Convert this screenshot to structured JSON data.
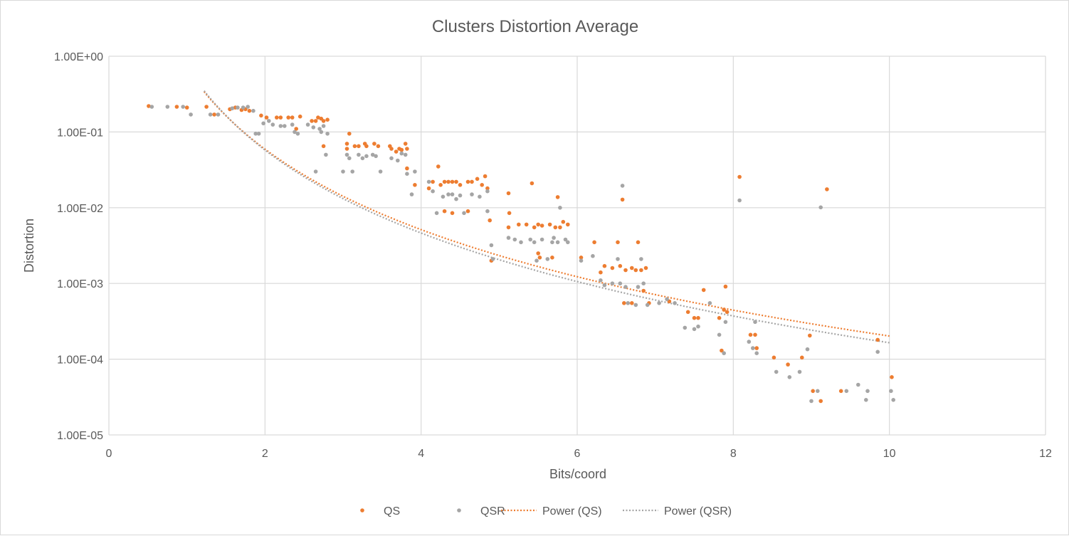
{
  "chart_data": {
    "type": "scatter",
    "title": "Clusters Distortion Average",
    "xlabel": "Bits/coord",
    "ylabel": "Distortion",
    "xlim": [
      0,
      12
    ],
    "ylim": [
      1e-05,
      1
    ],
    "yscale": "log",
    "x_ticks": [
      "0",
      "2",
      "4",
      "6",
      "8",
      "10",
      "12"
    ],
    "x_tick_values": [
      0,
      2,
      4,
      6,
      8,
      10,
      12
    ],
    "y_ticks": [
      "1.00E-05",
      "1.00E-04",
      "1.00E-03",
      "1.00E-02",
      "1.00E-01",
      "1.00E+00"
    ],
    "y_tick_values": [
      1e-05,
      0.0001,
      0.001,
      0.01,
      0.1,
      1
    ],
    "grid": true,
    "legend_position": "bottom",
    "series": [
      {
        "name": "QS",
        "kind": "points",
        "color": "#ed7d31",
        "points": [
          [
            0.51,
            0.22
          ],
          [
            0.87,
            0.215
          ],
          [
            1.0,
            0.21
          ],
          [
            1.25,
            0.215
          ],
          [
            1.35,
            0.17
          ],
          [
            1.55,
            0.2
          ],
          [
            1.62,
            0.21
          ],
          [
            1.7,
            0.195
          ],
          [
            1.75,
            0.2
          ],
          [
            1.8,
            0.19
          ],
          [
            1.95,
            0.165
          ],
          [
            2.02,
            0.155
          ],
          [
            2.15,
            0.155
          ],
          [
            2.2,
            0.155
          ],
          [
            2.3,
            0.155
          ],
          [
            2.35,
            0.155
          ],
          [
            2.4,
            0.11
          ],
          [
            2.45,
            0.16
          ],
          [
            2.6,
            0.14
          ],
          [
            2.65,
            0.14
          ],
          [
            2.68,
            0.155
          ],
          [
            2.72,
            0.15
          ],
          [
            2.75,
            0.14
          ],
          [
            2.8,
            0.145
          ],
          [
            2.75,
            0.065
          ],
          [
            3.05,
            0.07
          ],
          [
            3.08,
            0.095
          ],
          [
            3.05,
            0.06
          ],
          [
            3.15,
            0.065
          ],
          [
            3.2,
            0.065
          ],
          [
            3.28,
            0.07
          ],
          [
            3.3,
            0.065
          ],
          [
            3.4,
            0.07
          ],
          [
            3.45,
            0.065
          ],
          [
            3.6,
            0.065
          ],
          [
            3.62,
            0.06
          ],
          [
            3.68,
            0.055
          ],
          [
            3.72,
            0.06
          ],
          [
            3.75,
            0.058
          ],
          [
            3.8,
            0.07
          ],
          [
            3.82,
            0.06
          ],
          [
            3.82,
            0.033
          ],
          [
            3.92,
            0.02
          ],
          [
            4.1,
            0.018
          ],
          [
            4.15,
            0.022
          ],
          [
            4.22,
            0.035
          ],
          [
            4.25,
            0.02
          ],
          [
            4.3,
            0.022
          ],
          [
            4.35,
            0.022
          ],
          [
            4.4,
            0.022
          ],
          [
            4.45,
            0.022
          ],
          [
            4.5,
            0.02
          ],
          [
            4.6,
            0.022
          ],
          [
            4.65,
            0.022
          ],
          [
            4.72,
            0.024
          ],
          [
            4.78,
            0.02
          ],
          [
            4.82,
            0.026
          ],
          [
            4.85,
            0.018
          ],
          [
            4.4,
            0.0085
          ],
          [
            4.3,
            0.009
          ],
          [
            4.6,
            0.009
          ],
          [
            4.88,
            0.0068
          ],
          [
            4.9,
            0.002
          ],
          [
            5.12,
            0.0155
          ],
          [
            5.13,
            0.0085
          ],
          [
            5.12,
            0.0055
          ],
          [
            5.25,
            0.006
          ],
          [
            5.35,
            0.006
          ],
          [
            5.42,
            0.021
          ],
          [
            5.45,
            0.0055
          ],
          [
            5.5,
            0.006
          ],
          [
            5.55,
            0.0058
          ],
          [
            5.65,
            0.006
          ],
          [
            5.72,
            0.0055
          ],
          [
            5.75,
            0.0138
          ],
          [
            5.78,
            0.0055
          ],
          [
            5.82,
            0.0065
          ],
          [
            5.88,
            0.006
          ],
          [
            5.5,
            0.0025
          ],
          [
            5.52,
            0.0022
          ],
          [
            5.68,
            0.0022
          ],
          [
            6.05,
            0.0022
          ],
          [
            6.22,
            0.0035
          ],
          [
            6.3,
            0.0014
          ],
          [
            6.35,
            0.0017
          ],
          [
            6.45,
            0.0016
          ],
          [
            6.52,
            0.0035
          ],
          [
            6.55,
            0.0017
          ],
          [
            6.58,
            0.0128
          ],
          [
            6.62,
            0.0015
          ],
          [
            6.7,
            0.0016
          ],
          [
            6.75,
            0.0015
          ],
          [
            6.78,
            0.0035
          ],
          [
            6.82,
            0.0015
          ],
          [
            6.85,
            0.0008
          ],
          [
            6.88,
            0.0016
          ],
          [
            6.6,
            0.00055
          ],
          [
            6.7,
            0.00055
          ],
          [
            6.92,
            0.00055
          ],
          [
            7.18,
            0.00058
          ],
          [
            7.42,
            0.00042
          ],
          [
            7.5,
            0.00035
          ],
          [
            7.55,
            0.00035
          ],
          [
            7.62,
            0.00082
          ],
          [
            7.82,
            0.00035
          ],
          [
            7.88,
            0.00045
          ],
          [
            7.9,
            0.00091
          ],
          [
            7.85,
            0.00013
          ],
          [
            7.92,
            0.00042
          ],
          [
            8.08,
            0.0255
          ],
          [
            8.22,
            0.00021
          ],
          [
            8.28,
            0.00021
          ],
          [
            8.3,
            0.00014
          ],
          [
            8.52,
            0.000105
          ],
          [
            8.7,
            8.5e-05
          ],
          [
            8.88,
            0.000105
          ],
          [
            8.98,
            0.000205
          ],
          [
            9.02,
            3.8e-05
          ],
          [
            9.12,
            2.8e-05
          ],
          [
            9.2,
            0.0175
          ],
          [
            9.38,
            3.8e-05
          ],
          [
            9.85,
            0.00018
          ],
          [
            10.03,
            5.8e-05
          ]
        ]
      },
      {
        "name": "QSR",
        "kind": "points",
        "color": "#a5a5a5",
        "points": [
          [
            0.55,
            0.215
          ],
          [
            0.75,
            0.215
          ],
          [
            0.95,
            0.215
          ],
          [
            1.05,
            0.17
          ],
          [
            1.3,
            0.17
          ],
          [
            1.4,
            0.17
          ],
          [
            1.58,
            0.205
          ],
          [
            1.65,
            0.21
          ],
          [
            1.72,
            0.21
          ],
          [
            1.78,
            0.215
          ],
          [
            1.85,
            0.19
          ],
          [
            1.88,
            0.095
          ],
          [
            1.92,
            0.095
          ],
          [
            1.98,
            0.13
          ],
          [
            2.05,
            0.14
          ],
          [
            2.1,
            0.125
          ],
          [
            2.2,
            0.12
          ],
          [
            2.25,
            0.12
          ],
          [
            2.35,
            0.125
          ],
          [
            2.38,
            0.1
          ],
          [
            2.42,
            0.095
          ],
          [
            2.55,
            0.125
          ],
          [
            2.62,
            0.115
          ],
          [
            2.65,
            0.03
          ],
          [
            2.7,
            0.11
          ],
          [
            2.75,
            0.12
          ],
          [
            2.72,
            0.1
          ],
          [
            2.78,
            0.05
          ],
          [
            2.8,
            0.095
          ],
          [
            3.0,
            0.03
          ],
          [
            3.05,
            0.05
          ],
          [
            3.08,
            0.045
          ],
          [
            3.12,
            0.03
          ],
          [
            3.2,
            0.05
          ],
          [
            3.25,
            0.045
          ],
          [
            3.3,
            0.048
          ],
          [
            3.38,
            0.05
          ],
          [
            3.42,
            0.048
          ],
          [
            3.48,
            0.03
          ],
          [
            3.62,
            0.045
          ],
          [
            3.7,
            0.042
          ],
          [
            3.75,
            0.052
          ],
          [
            3.8,
            0.05
          ],
          [
            3.82,
            0.028
          ],
          [
            3.88,
            0.015
          ],
          [
            3.92,
            0.03
          ],
          [
            4.1,
            0.022
          ],
          [
            4.15,
            0.0165
          ],
          [
            4.2,
            0.0085
          ],
          [
            4.28,
            0.014
          ],
          [
            4.35,
            0.015
          ],
          [
            4.4,
            0.015
          ],
          [
            4.45,
            0.013
          ],
          [
            4.5,
            0.0145
          ],
          [
            4.55,
            0.0085
          ],
          [
            4.65,
            0.015
          ],
          [
            4.75,
            0.014
          ],
          [
            4.85,
            0.0165
          ],
          [
            4.85,
            0.009
          ],
          [
            4.9,
            0.0032
          ],
          [
            4.92,
            0.0021
          ],
          [
            5.12,
            0.004
          ],
          [
            5.2,
            0.0038
          ],
          [
            5.28,
            0.0035
          ],
          [
            5.4,
            0.0038
          ],
          [
            5.45,
            0.0035
          ],
          [
            5.48,
            0.002
          ],
          [
            5.55,
            0.0038
          ],
          [
            5.62,
            0.0021
          ],
          [
            5.68,
            0.0035
          ],
          [
            5.7,
            0.004
          ],
          [
            5.75,
            0.0035
          ],
          [
            5.78,
            0.01
          ],
          [
            5.85,
            0.0038
          ],
          [
            5.88,
            0.0035
          ],
          [
            6.05,
            0.002
          ],
          [
            6.2,
            0.0023
          ],
          [
            6.3,
            0.0011
          ],
          [
            6.35,
            0.00095
          ],
          [
            6.45,
            0.001
          ],
          [
            6.52,
            0.0021
          ],
          [
            6.55,
            0.001
          ],
          [
            6.58,
            0.0195
          ],
          [
            6.62,
            0.0009
          ],
          [
            6.65,
            0.00055
          ],
          [
            6.75,
            0.00052
          ],
          [
            6.78,
            0.0009
          ],
          [
            6.82,
            0.0021
          ],
          [
            6.85,
            0.001
          ],
          [
            6.9,
            0.00052
          ],
          [
            7.05,
            0.00055
          ],
          [
            7.15,
            0.00062
          ],
          [
            7.25,
            0.00055
          ],
          [
            7.38,
            0.00026
          ],
          [
            7.5,
            0.00025
          ],
          [
            7.55,
            0.00027
          ],
          [
            7.7,
            0.00055
          ],
          [
            7.82,
            0.00021
          ],
          [
            7.88,
            0.00012
          ],
          [
            7.9,
            0.00031
          ],
          [
            8.08,
            0.0125
          ],
          [
            8.2,
            0.00017
          ],
          [
            8.25,
            0.00014
          ],
          [
            8.3,
            0.00012
          ],
          [
            8.28,
            0.00031
          ],
          [
            8.55,
            6.8e-05
          ],
          [
            8.72,
            5.8e-05
          ],
          [
            8.85,
            6.8e-05
          ],
          [
            8.95,
            0.000135
          ],
          [
            9.0,
            2.8e-05
          ],
          [
            9.08,
            3.8e-05
          ],
          [
            9.12,
            0.0101
          ],
          [
            9.45,
            3.8e-05
          ],
          [
            9.6,
            4.6e-05
          ],
          [
            9.7,
            2.9e-05
          ],
          [
            9.72,
            3.8e-05
          ],
          [
            9.85,
            0.000125
          ],
          [
            10.02,
            3.8e-05
          ],
          [
            10.05,
            2.9e-05
          ]
        ]
      },
      {
        "name": "Power (QS)",
        "kind": "power-trendline",
        "color": "#ed7d31",
        "a": 0.685,
        "b": -3.53,
        "x_range": [
          1.22,
          10.0
        ]
      },
      {
        "name": "Power (QSR)",
        "kind": "power-trendline",
        "color": "#a5a5a5",
        "a": 0.72,
        "b": -3.64,
        "x_range": [
          1.22,
          10.0
        ]
      }
    ]
  }
}
